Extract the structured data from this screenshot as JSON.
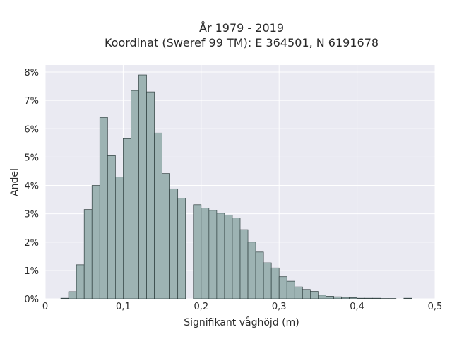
{
  "chart_data": {
    "type": "bar",
    "title_line1": "År 1979 - 2019",
    "title_line2": "Koordinat (Sweref 99 TM): E 364501, N 6191678",
    "xlabel": "Signifikant våghöjd (m)",
    "ylabel": "Andel",
    "xlim": [
      0,
      0.5
    ],
    "ylim": [
      0,
      8.25
    ],
    "x_ticks": [
      0,
      0.1,
      0.2,
      0.3,
      0.4,
      0.5
    ],
    "x_tick_labels": [
      "0",
      "0,1",
      "0,2",
      "0,3",
      "0,4",
      "0,5"
    ],
    "y_ticks": [
      0,
      1,
      2,
      3,
      4,
      5,
      6,
      7,
      8
    ],
    "y_tick_labels": [
      "0%",
      "1%",
      "2%",
      "3%",
      "4%",
      "5%",
      "6%",
      "7%",
      "8%"
    ],
    "bin_width": 0.01,
    "bins_start": [
      0.02,
      0.03,
      0.04,
      0.05,
      0.06,
      0.07,
      0.08,
      0.09,
      0.1,
      0.11,
      0.12,
      0.13,
      0.14,
      0.15,
      0.16,
      0.17,
      0.18,
      0.19,
      0.2,
      0.21,
      0.22,
      0.23,
      0.24,
      0.25,
      0.26,
      0.27,
      0.28,
      0.29,
      0.3,
      0.31,
      0.32,
      0.33,
      0.34,
      0.35,
      0.36,
      0.37,
      0.38,
      0.39,
      0.4,
      0.41,
      0.42,
      0.43,
      0.44,
      0.45,
      0.46
    ],
    "values": [
      0.02,
      0.25,
      1.2,
      3.15,
      4.0,
      6.4,
      5.05,
      4.3,
      5.65,
      7.35,
      7.9,
      7.3,
      5.85,
      4.42,
      3.88,
      3.55,
      0.0,
      3.32,
      3.2,
      3.12,
      3.02,
      2.95,
      2.85,
      2.44,
      2.0,
      1.65,
      1.27,
      1.09,
      0.78,
      0.62,
      0.42,
      0.33,
      0.26,
      0.13,
      0.09,
      0.07,
      0.05,
      0.04,
      0.02,
      0.02,
      0.02,
      0.01,
      0.01,
      0.0,
      0.02
    ],
    "grid": true,
    "background": "#eaeaf2",
    "bar_color": "#9db3b3",
    "edge_color": "#2f3f3f"
  }
}
